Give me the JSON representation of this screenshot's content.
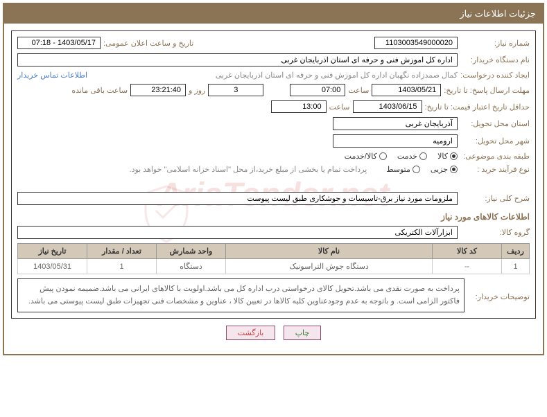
{
  "header": {
    "title": "جزئیات اطلاعات نیاز"
  },
  "fields": {
    "need_number": {
      "label": "شماره نیاز:",
      "value": "1103003549000020"
    },
    "announce_date": {
      "label": "تاریخ و ساعت اعلان عمومی:",
      "value": "1403/05/17 - 07:18"
    },
    "buyer_org": {
      "label": "نام دستگاه خریدار:",
      "value": "اداره کل اموزش فنی و حرفه ای استان اذربایجان غربی"
    },
    "requester": {
      "label": "ایجاد کننده درخواست:",
      "value": "کمال صمدزاده نگهبان اداره کل اموزش فنی و حرفه ای استان اذربایجان غربی"
    },
    "contact_link": "اطلاعات تماس خریدار",
    "deadline": {
      "label": "مهلت ارسال پاسخ: تا تاریخ:",
      "date": "1403/05/21",
      "time_label": "ساعت",
      "time": "07:00",
      "days": "3",
      "days_label": "روز و",
      "remaining": "23:21:40",
      "remaining_label": "ساعت باقی مانده"
    },
    "validity": {
      "label": "حداقل تاریخ اعتبار قیمت: تا تاریخ:",
      "date": "1403/06/15",
      "time_label": "ساعت",
      "time": "13:00"
    },
    "province": {
      "label": "استان محل تحویل:",
      "value": "آذربایجان غربی"
    },
    "city": {
      "label": "شهر محل تحویل:",
      "value": "ارومیه"
    },
    "category": {
      "label": "طبقه بندی موضوعی:",
      "options": [
        "کالا",
        "خدمت",
        "کالا/خدمت"
      ],
      "selected": 0
    },
    "purchase_type": {
      "label": "نوع فرآیند خرید :",
      "options": [
        "جزیی",
        "متوسط"
      ],
      "selected": 0,
      "note": "پرداخت تمام یا بخشی از مبلغ خرید،از محل \"اسناد خزانه اسلامی\" خواهد بود."
    },
    "description": {
      "label": "شرح کلی نیاز:",
      "value": "ملزومات مورد نیاز برق-تاسیسات و جوشکاری طبق لیست پیوست"
    },
    "goods_info_title": "اطلاعات کالاهای مورد نیاز",
    "goods_group": {
      "label": "گروه کالا:",
      "value": "ابزارآلات الکتریکی"
    },
    "buyer_notes": {
      "label": "توضیحات خریدار:",
      "value": "پرداخت به صورت نقدی می باشد.تحویل کالای درخواستی درب اداره کل می باشد.اولویت با کالاهای ایرانی می باشد.ضمیمه نمودن پیش فاکتور الزامی است. و باتوجه به عدم وجودعناوین کلیه کالاها در تعیین کالا ، عناوین و مشخصات فنی تجهیزات طبق لیست پیوستی می باشد."
    }
  },
  "table": {
    "headers": [
      "ردیف",
      "کد کالا",
      "نام کالا",
      "واحد شمارش",
      "تعداد / مقدار",
      "تاریخ نیاز"
    ],
    "rows": [
      [
        "1",
        "--",
        "دستگاه جوش التراسونیک",
        "دستگاه",
        "1",
        "1403/05/31"
      ]
    ]
  },
  "buttons": {
    "print": "چاپ",
    "back": "بازگشت"
  },
  "watermark": "AriaTender.net"
}
